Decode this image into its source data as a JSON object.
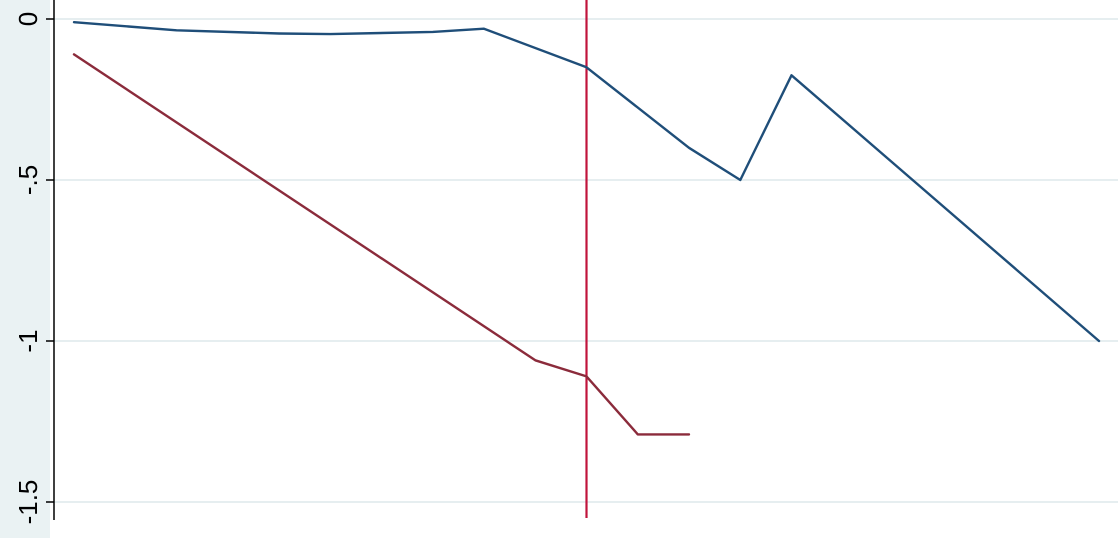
{
  "chart_data": {
    "type": "line",
    "title": "",
    "xlabel": "",
    "ylabel": "",
    "ylim": [
      -1.5,
      0
    ],
    "y_ticks": [
      {
        "value": 0,
        "label": "0"
      },
      {
        "value": -0.5,
        "label": "-.5"
      },
      {
        "value": -1,
        "label": "-1"
      },
      {
        "value": -1.5,
        "label": "-1.5"
      }
    ],
    "grid": true,
    "reference_line": {
      "x": 10,
      "color": "#c0143c"
    },
    "series": [
      {
        "color": "#1f4e79",
        "points": [
          {
            "x": 0,
            "y": -0.01
          },
          {
            "x": 2,
            "y": -0.035
          },
          {
            "x": 4,
            "y": -0.045
          },
          {
            "x": 5,
            "y": -0.047
          },
          {
            "x": 7,
            "y": -0.04
          },
          {
            "x": 8,
            "y": -0.03
          },
          {
            "x": 10,
            "y": -0.15
          },
          {
            "x": 12,
            "y": -0.4
          },
          {
            "x": 13,
            "y": -0.5
          },
          {
            "x": 14,
            "y": -0.175
          },
          {
            "x": 20,
            "y": -1.0
          }
        ]
      },
      {
        "color": "#8b2b3b",
        "points": [
          {
            "x": 0,
            "y": -0.11
          },
          {
            "x": 9,
            "y": -1.06
          },
          {
            "x": 10,
            "y": -1.11
          },
          {
            "x": 11,
            "y": -1.29
          },
          {
            "x": 12,
            "y": -1.29
          }
        ]
      }
    ]
  }
}
